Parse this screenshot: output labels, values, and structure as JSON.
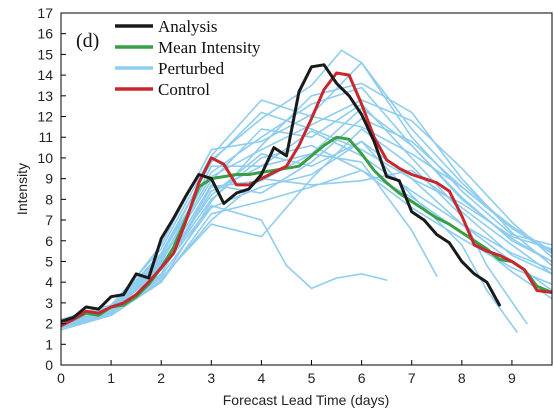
{
  "chart_data": {
    "type": "line",
    "panel_label": "(d)",
    "xlabel": "Forecast Lead Time (days)",
    "ylabel": "Intensity",
    "xlim": [
      0,
      9.8
    ],
    "ylim": [
      0,
      17
    ],
    "xticks": [
      0,
      1,
      2,
      3,
      4,
      5,
      6,
      7,
      8,
      9
    ],
    "yticks": [
      0,
      1,
      2,
      3,
      4,
      5,
      6,
      7,
      8,
      9,
      10,
      11,
      12,
      13,
      14,
      15,
      16,
      17
    ],
    "grid": false,
    "legend_position": "top-left",
    "legend": [
      {
        "label": "Analysis",
        "color": "#1a1a1a"
      },
      {
        "label": "Mean Intensity",
        "color": "#3a9e46"
      },
      {
        "label": "Perturbed",
        "color": "#8fcdef"
      },
      {
        "label": "Control",
        "color": "#c8282d"
      }
    ],
    "series": [
      {
        "name": "Analysis",
        "color": "#1a1a1a",
        "x": [
          0,
          0.25,
          0.5,
          0.75,
          1,
          1.25,
          1.5,
          1.75,
          2,
          2.25,
          2.5,
          2.75,
          3,
          3.25,
          3.5,
          3.75,
          4,
          4.25,
          4.5,
          4.75,
          5,
          5.25,
          5.5,
          5.75,
          6,
          6.25,
          6.5,
          6.75,
          7,
          7.25,
          7.5,
          7.75,
          8,
          8.25,
          8.5,
          8.75
        ],
        "y": [
          2.1,
          2.3,
          2.8,
          2.7,
          3.3,
          3.4,
          4.4,
          4.2,
          6.1,
          7.1,
          8.2,
          9.2,
          9.0,
          7.8,
          8.3,
          8.5,
          9.2,
          10.5,
          10.1,
          13.2,
          14.4,
          14.5,
          13.6,
          13.0,
          12.1,
          10.8,
          9.1,
          8.9,
          7.4,
          7.0,
          6.3,
          5.9,
          5.0,
          4.4,
          4.0,
          2.9
        ]
      },
      {
        "name": "Mean Intensity",
        "color": "#3a9e46",
        "x": [
          0,
          0.25,
          0.5,
          0.75,
          1,
          1.25,
          1.5,
          1.75,
          2,
          2.25,
          2.5,
          2.75,
          3,
          3.25,
          3.5,
          3.75,
          4,
          4.25,
          4.5,
          4.75,
          5,
          5.25,
          5.5,
          5.75,
          6,
          6.25,
          6.5,
          6.75,
          7,
          7.25,
          7.5,
          7.75,
          8,
          8.25,
          8.5,
          8.75,
          9,
          9.25,
          9.5,
          9.8
        ],
        "y": [
          1.9,
          2.2,
          2.5,
          2.4,
          2.8,
          2.9,
          3.3,
          3.9,
          4.7,
          5.7,
          7.1,
          8.6,
          9.0,
          9.1,
          9.2,
          9.2,
          9.3,
          9.4,
          9.5,
          9.6,
          10.1,
          10.6,
          11.0,
          10.9,
          10.2,
          9.4,
          8.8,
          8.3,
          7.9,
          7.5,
          7.1,
          6.8,
          6.4,
          6.0,
          5.6,
          5.1,
          5.0,
          4.6,
          3.8,
          3.5
        ]
      },
      {
        "name": "Control",
        "color": "#c8282d",
        "x": [
          0,
          0.25,
          0.5,
          0.75,
          1,
          1.25,
          1.5,
          1.75,
          2,
          2.25,
          2.5,
          2.75,
          3,
          3.25,
          3.5,
          3.75,
          4,
          4.25,
          4.5,
          4.75,
          5,
          5.25,
          5.5,
          5.75,
          6,
          6.25,
          6.5,
          6.75,
          7,
          7.25,
          7.5,
          7.75,
          8,
          8.25,
          8.5,
          8.75,
          9,
          9.25,
          9.5,
          9.8
        ],
        "y": [
          1.9,
          2.2,
          2.6,
          2.5,
          2.8,
          3.0,
          3.4,
          4.0,
          4.7,
          5.4,
          7.0,
          8.8,
          10.0,
          9.7,
          8.7,
          8.7,
          9.0,
          9.3,
          9.6,
          10.6,
          11.9,
          13.3,
          14.1,
          14.0,
          12.6,
          11.0,
          9.9,
          9.5,
          9.2,
          9.0,
          8.8,
          8.4,
          7.2,
          5.8,
          5.5,
          5.3,
          5.0,
          4.6,
          3.6,
          3.5
        ]
      },
      {
        "name": "Perturbed",
        "color": "#8fcdef",
        "x": [
          0,
          1,
          2,
          3,
          4,
          5,
          6,
          7,
          8,
          9,
          9.8
        ],
        "y": [
          1.9,
          2.6,
          4.9,
          9.6,
          9.6,
          11.3,
          10.1,
          8.4,
          6.8,
          5.4,
          4.6
        ]
      },
      {
        "name": "Perturbed",
        "color": "#8fcdef",
        "x": [
          0,
          1,
          2,
          3,
          4,
          5,
          6,
          7,
          8,
          9,
          9.8
        ],
        "y": [
          2.0,
          2.7,
          5.8,
          10.4,
          10.8,
          12.1,
          14.6,
          11.4,
          8.8,
          6.6,
          5.4
        ]
      },
      {
        "name": "Perturbed",
        "color": "#8fcdef",
        "x": [
          0,
          1,
          2,
          3,
          4,
          5,
          6,
          7,
          8,
          9,
          9.8
        ],
        "y": [
          1.8,
          2.5,
          4.4,
          8.6,
          8.9,
          10.2,
          12.4,
          10.6,
          8.0,
          6.1,
          5.0
        ]
      },
      {
        "name": "Perturbed",
        "color": "#8fcdef",
        "x": [
          0,
          1,
          2,
          3,
          4,
          5,
          5.6,
          6,
          7,
          8,
          9,
          9.8
        ],
        "y": [
          2.1,
          2.8,
          5.2,
          9.9,
          11.9,
          13.5,
          15.2,
          14.6,
          11.0,
          8.4,
          6.3,
          5.8
        ]
      },
      {
        "name": "Perturbed",
        "color": "#8fcdef",
        "x": [
          0,
          1,
          2,
          3,
          4,
          5,
          6,
          7,
          8,
          9,
          9.8
        ],
        "y": [
          1.7,
          2.4,
          4.0,
          7.3,
          7.9,
          8.6,
          9.4,
          8.1,
          6.4,
          4.5,
          3.2
        ]
      },
      {
        "name": "Perturbed",
        "color": "#8fcdef",
        "x": [
          0,
          1,
          2,
          3,
          4,
          4.5,
          5,
          5.5,
          6,
          6.5
        ],
        "y": [
          1.9,
          2.6,
          4.6,
          7.7,
          7.0,
          4.8,
          3.7,
          4.2,
          4.4,
          4.1
        ]
      },
      {
        "name": "Perturbed",
        "color": "#8fcdef",
        "x": [
          0,
          1,
          2,
          3,
          4,
          5,
          6,
          7,
          8,
          9,
          9.8
        ],
        "y": [
          2.0,
          2.7,
          5.0,
          8.9,
          11.4,
          11.0,
          12.6,
          10.0,
          7.4,
          5.3,
          4.4
        ]
      },
      {
        "name": "Perturbed",
        "color": "#8fcdef",
        "x": [
          0,
          1,
          2,
          3,
          4,
          5,
          6,
          7,
          8,
          8.5,
          9.3
        ],
        "y": [
          1.9,
          2.5,
          4.2,
          6.8,
          6.2,
          9.0,
          11.4,
          9.6,
          7.2,
          4.8,
          2.0
        ]
      },
      {
        "name": "Perturbed",
        "color": "#8fcdef",
        "x": [
          0,
          1,
          2,
          3,
          4,
          5,
          6,
          7,
          8,
          9,
          9.8
        ],
        "y": [
          2.2,
          2.9,
          5.6,
          10.1,
          12.8,
          12.0,
          11.5,
          10.2,
          8.6,
          6.7,
          5.5
        ]
      },
      {
        "name": "Perturbed",
        "color": "#8fcdef",
        "x": [
          0,
          1,
          2,
          3,
          4,
          5,
          6,
          7,
          8,
          9,
          9.8
        ],
        "y": [
          1.8,
          2.4,
          4.1,
          7.0,
          9.0,
          8.7,
          8.9,
          9.4,
          7.6,
          5.8,
          4.4
        ]
      },
      {
        "name": "Perturbed",
        "color": "#8fcdef",
        "x": [
          0,
          1,
          2,
          3,
          4,
          5,
          6,
          7,
          8,
          8.5,
          9.1
        ],
        "y": [
          2.0,
          2.6,
          4.8,
          8.2,
          10.2,
          9.6,
          10.8,
          8.2,
          5.8,
          3.6,
          1.6
        ]
      },
      {
        "name": "Perturbed",
        "color": "#8fcdef",
        "x": [
          0,
          1,
          2,
          3,
          4,
          5,
          6,
          7,
          8,
          9,
          9.8
        ],
        "y": [
          1.9,
          2.6,
          4.6,
          8.0,
          10.0,
          10.6,
          9.4,
          7.6,
          6.1,
          4.7,
          3.9
        ]
      },
      {
        "name": "Perturbed",
        "color": "#8fcdef",
        "x": [
          0,
          1,
          2,
          3,
          4,
          5,
          6,
          7,
          8,
          9,
          9.8
        ],
        "y": [
          2.1,
          2.8,
          5.3,
          9.3,
          11.0,
          12.6,
          13.4,
          10.6,
          8.1,
          6.0,
          5.0
        ]
      },
      {
        "name": "Perturbed",
        "color": "#8fcdef",
        "x": [
          0,
          1,
          2,
          3,
          4,
          5,
          6,
          7,
          8,
          9,
          9.8
        ],
        "y": [
          1.8,
          2.5,
          4.3,
          7.6,
          8.6,
          9.2,
          10.8,
          9.0,
          6.8,
          5.0,
          3.6
        ]
      },
      {
        "name": "Perturbed",
        "color": "#8fcdef",
        "x": [
          0,
          1,
          2,
          3,
          4,
          5,
          6,
          7,
          8,
          9,
          9.8
        ],
        "y": [
          2.0,
          2.7,
          5.1,
          9.1,
          10.4,
          11.6,
          12.8,
          11.8,
          9.5,
          6.9,
          5.2
        ]
      },
      {
        "name": "Perturbed",
        "color": "#8fcdef",
        "x": [
          0,
          1,
          2,
          3,
          4,
          5,
          6,
          7,
          7.5
        ],
        "y": [
          1.9,
          2.5,
          4.4,
          8.4,
          9.6,
          10.2,
          9.8,
          6.5,
          4.3
        ]
      },
      {
        "name": "Perturbed",
        "color": "#8fcdef",
        "x": [
          0,
          1,
          2,
          3,
          4,
          5,
          6,
          7,
          8,
          9,
          9.8
        ],
        "y": [
          1.8,
          2.4,
          4.0,
          7.9,
          10.6,
          13.0,
          13.6,
          12.2,
          9.0,
          6.4,
          4.8
        ]
      },
      {
        "name": "Perturbed",
        "color": "#8fcdef",
        "x": [
          0,
          1,
          2,
          3,
          4,
          5,
          6,
          7,
          8,
          9,
          9.8
        ],
        "y": [
          2.1,
          2.8,
          5.4,
          9.8,
          12.2,
          11.4,
          10.4,
          9.0,
          7.8,
          6.2,
          5.6
        ]
      },
      {
        "name": "Perturbed",
        "color": "#8fcdef",
        "x": [
          0,
          1,
          2,
          3,
          4,
          5,
          6,
          7,
          8,
          9,
          9.8
        ],
        "y": [
          1.9,
          2.6,
          4.7,
          8.7,
          8.3,
          9.8,
          11.9,
          10.8,
          8.6,
          6.6,
          5.4
        ]
      }
    ]
  }
}
